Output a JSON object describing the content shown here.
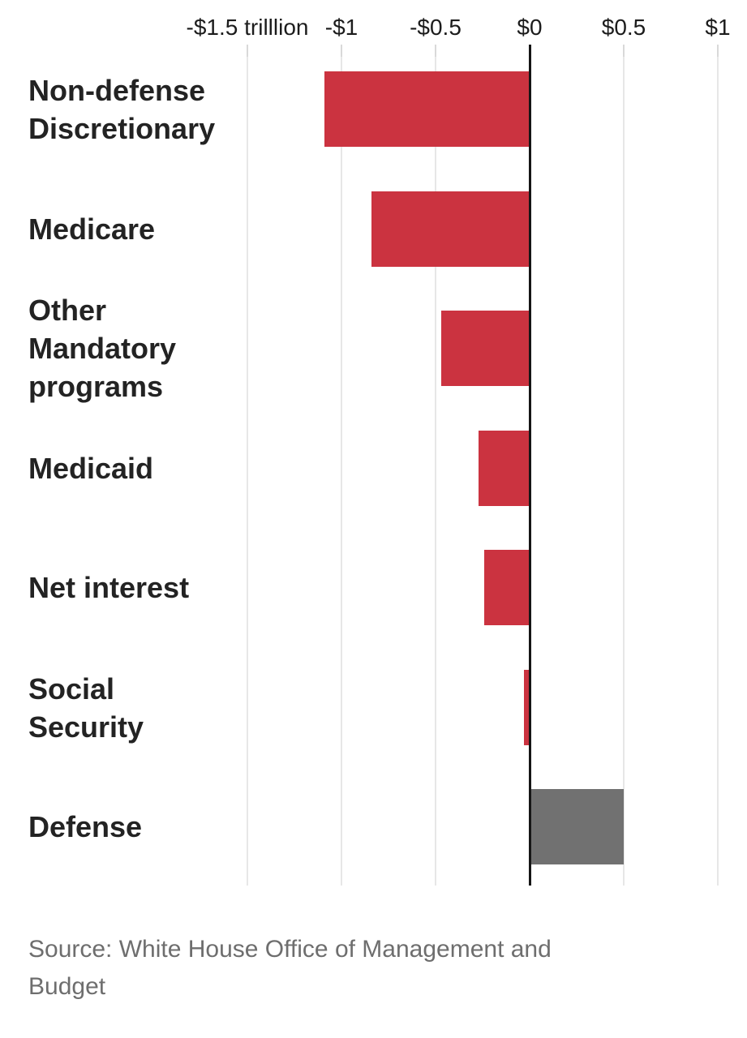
{
  "chart_data": {
    "type": "bar",
    "orientation": "horizontal",
    "title": "",
    "xlabel": "",
    "ylabel": "",
    "unit": "trillion USD (change in spending)",
    "xlim": [
      -1.75,
      1.15
    ],
    "grid": true,
    "legend": false,
    "axis_ticks": [
      {
        "label": "-$1.5 trilllion",
        "value": -1.5
      },
      {
        "label": "-$1",
        "value": -1.0
      },
      {
        "label": "-$0.5",
        "value": -0.5
      },
      {
        "label": "$0",
        "value": 0.0
      },
      {
        "label": "$0.5",
        "value": 0.5
      },
      {
        "label": "$1",
        "value": 1.0
      }
    ],
    "categories": [
      "Non-defense Discretionary",
      "Medicare",
      "Other Mandatory programs",
      "Medicaid",
      "Net interest",
      "Social Security",
      "Defense"
    ],
    "category_lines": [
      [
        "Non-defense",
        "Discretionary"
      ],
      [
        "Medicare"
      ],
      [
        "Other",
        "Mandatory",
        "programs"
      ],
      [
        "Medicaid"
      ],
      [
        "Net interest"
      ],
      [
        "Social",
        "Security"
      ],
      [
        "Defense"
      ]
    ],
    "values": [
      -1.09,
      -0.84,
      -0.47,
      -0.27,
      -0.24,
      -0.03,
      0.5
    ],
    "colors": {
      "negative_bar": "#cb3340",
      "positive_bar": "#717171",
      "zero_axis": "#161616",
      "gridline": "#e7e7e7",
      "category_text": "#232323",
      "axis_text": "#1c1c1c",
      "source_text": "#6e6e6e"
    }
  },
  "source": {
    "text": "Source: White House Office of Management and Budget"
  }
}
